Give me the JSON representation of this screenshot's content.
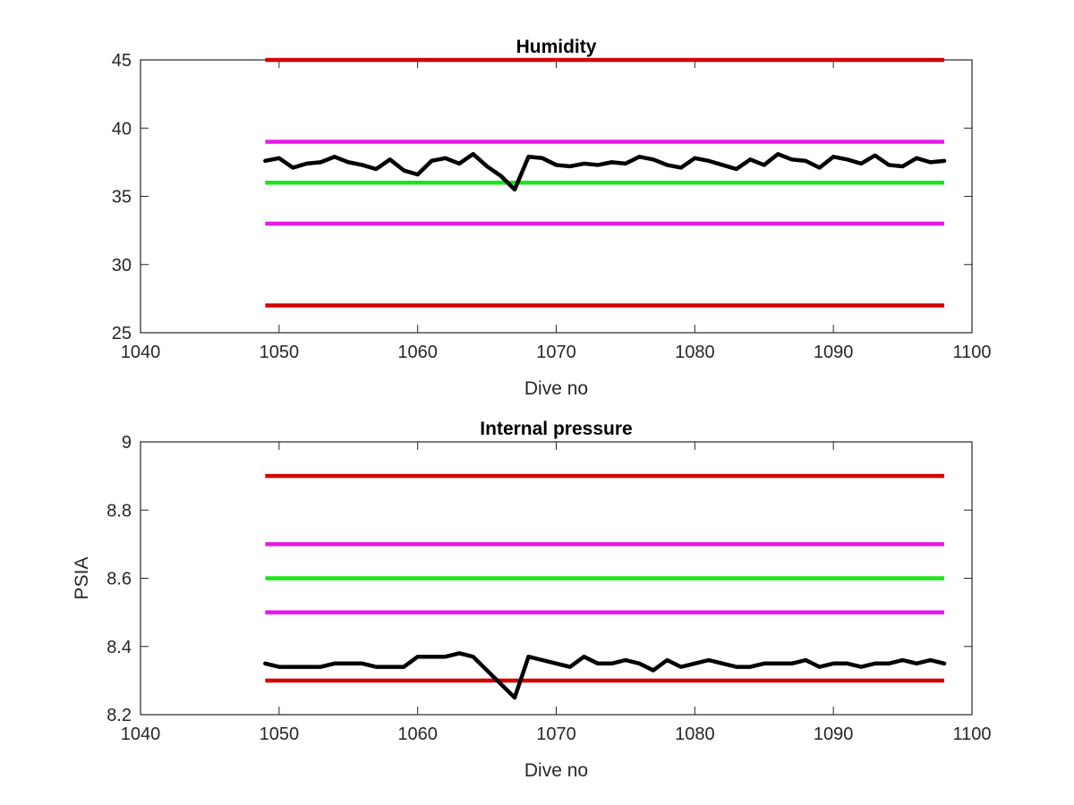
{
  "chart_data": [
    {
      "type": "line",
      "title": "Humidity",
      "xlabel": "Dive no",
      "ylabel": "",
      "xlim": [
        1040,
        1100
      ],
      "ylim": [
        25,
        45
      ],
      "xticks": [
        "1040",
        "1050",
        "1060",
        "1070",
        "1080",
        "1090",
        "1100"
      ],
      "yticks": [
        "25",
        "30",
        "35",
        "40",
        "45"
      ],
      "grid": false,
      "legend": "none",
      "thresholds": [
        {
          "y": 45,
          "x": [
            1049,
            1098
          ],
          "color": "#d40000"
        },
        {
          "y": 39,
          "x": [
            1049,
            1098
          ],
          "color": "#e619e6"
        },
        {
          "y": 36,
          "x": [
            1049,
            1098
          ],
          "color": "#19e619"
        },
        {
          "y": 33,
          "x": [
            1049,
            1098
          ],
          "color": "#e619e6"
        },
        {
          "y": 27,
          "x": [
            1049,
            1098
          ],
          "color": "#d40000"
        }
      ],
      "series": [
        {
          "color": "#000000",
          "x": [
            1049,
            1050,
            1051,
            1052,
            1053,
            1054,
            1055,
            1056,
            1057,
            1058,
            1059,
            1060,
            1061,
            1062,
            1063,
            1064,
            1065,
            1066,
            1067,
            1068,
            1069,
            1070,
            1071,
            1072,
            1073,
            1074,
            1075,
            1076,
            1077,
            1078,
            1079,
            1080,
            1081,
            1082,
            1083,
            1084,
            1085,
            1086,
            1087,
            1088,
            1089,
            1090,
            1091,
            1092,
            1093,
            1094,
            1095,
            1096,
            1097,
            1098
          ],
          "y": [
            37.6,
            37.8,
            37.1,
            37.4,
            37.5,
            37.9,
            37.5,
            37.3,
            37.0,
            37.7,
            36.9,
            36.6,
            37.6,
            37.8,
            37.4,
            38.1,
            37.2,
            36.5,
            35.5,
            37.9,
            37.8,
            37.3,
            37.2,
            37.4,
            37.3,
            37.5,
            37.4,
            37.9,
            37.7,
            37.3,
            37.1,
            37.8,
            37.6,
            37.3,
            37.0,
            37.7,
            37.3,
            38.1,
            37.7,
            37.6,
            37.1,
            37.9,
            37.7,
            37.4,
            38.0,
            37.3,
            37.2,
            37.8,
            37.5,
            37.6
          ]
        }
      ]
    },
    {
      "type": "line",
      "title": "Internal pressure",
      "xlabel": "Dive no",
      "ylabel": "PSIA",
      "xlim": [
        1040,
        1100
      ],
      "ylim": [
        8.2,
        9
      ],
      "xticks": [
        "1040",
        "1050",
        "1060",
        "1070",
        "1080",
        "1090",
        "1100"
      ],
      "yticks": [
        "8.2",
        "8.4",
        "8.6",
        "8.8",
        "9"
      ],
      "grid": false,
      "legend": "none",
      "thresholds": [
        {
          "y": 8.9,
          "x": [
            1049,
            1098
          ],
          "color": "#d40000"
        },
        {
          "y": 8.7,
          "x": [
            1049,
            1098
          ],
          "color": "#e619e6"
        },
        {
          "y": 8.6,
          "x": [
            1049,
            1098
          ],
          "color": "#19e619"
        },
        {
          "y": 8.5,
          "x": [
            1049,
            1098
          ],
          "color": "#e619e6"
        },
        {
          "y": 8.3,
          "x": [
            1049,
            1098
          ],
          "color": "#d40000"
        }
      ],
      "series": [
        {
          "color": "#000000",
          "x": [
            1049,
            1050,
            1051,
            1052,
            1053,
            1054,
            1055,
            1056,
            1057,
            1058,
            1059,
            1060,
            1061,
            1062,
            1063,
            1064,
            1065,
            1066,
            1067,
            1068,
            1069,
            1070,
            1071,
            1072,
            1073,
            1074,
            1075,
            1076,
            1077,
            1078,
            1079,
            1080,
            1081,
            1082,
            1083,
            1084,
            1085,
            1086,
            1087,
            1088,
            1089,
            1090,
            1091,
            1092,
            1093,
            1094,
            1095,
            1096,
            1097,
            1098
          ],
          "y": [
            8.35,
            8.34,
            8.34,
            8.34,
            8.34,
            8.35,
            8.35,
            8.35,
            8.34,
            8.34,
            8.34,
            8.37,
            8.37,
            8.37,
            8.38,
            8.37,
            8.33,
            8.29,
            8.25,
            8.37,
            8.36,
            8.35,
            8.34,
            8.37,
            8.35,
            8.35,
            8.36,
            8.35,
            8.33,
            8.36,
            8.34,
            8.35,
            8.36,
            8.35,
            8.34,
            8.34,
            8.35,
            8.35,
            8.35,
            8.36,
            8.34,
            8.35,
            8.35,
            8.34,
            8.35,
            8.35,
            8.36,
            8.35,
            8.36,
            8.35
          ]
        }
      ]
    }
  ]
}
